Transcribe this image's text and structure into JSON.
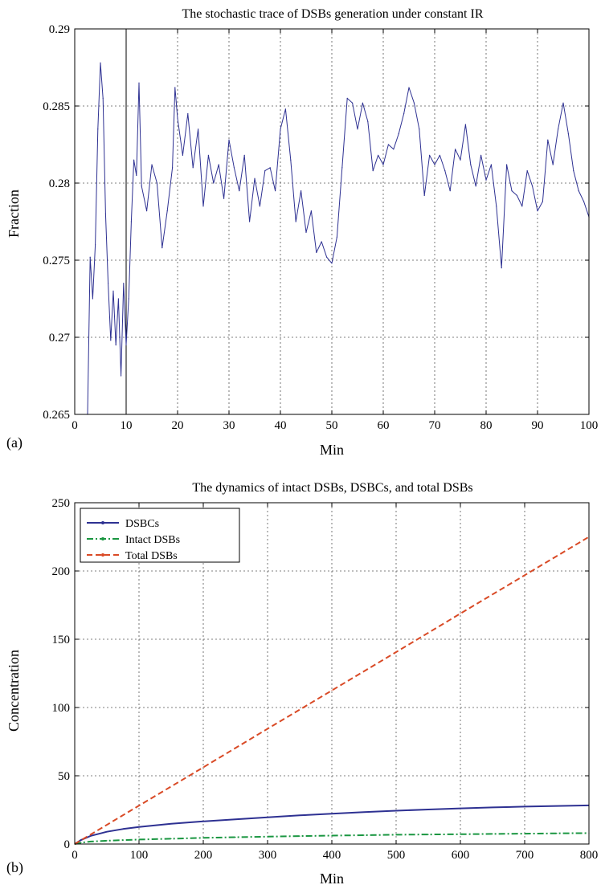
{
  "chart_data": [
    {
      "panel_label": "(a)",
      "type": "line",
      "title": "The stochastic trace of DSBs generation under constant IR",
      "xlabel": "Min",
      "ylabel": "Fraction",
      "xlim": [
        0,
        100
      ],
      "ylim": [
        0.265,
        0.29
      ],
      "xticks": [
        0,
        10,
        20,
        30,
        40,
        50,
        60,
        70,
        80,
        90,
        100
      ],
      "yticks": [
        0.265,
        0.27,
        0.275,
        0.28,
        0.285,
        0.29
      ],
      "ytick_labels": [
        "0.265",
        "0.27",
        "0.275",
        "0.28",
        "0.285",
        "0.29"
      ],
      "grid": true,
      "marker_line_x": 10,
      "series": [
        {
          "color": "#2e3192",
          "x": [
            2.5,
            3,
            3.5,
            4,
            4.5,
            5,
            5.5,
            6,
            6.5,
            7,
            7.5,
            8,
            8.5,
            9,
            9.5,
            10,
            10.5,
            11,
            11.5,
            12,
            12.5,
            13,
            14,
            15,
            16,
            17,
            18,
            19,
            19.5,
            20,
            21,
            22,
            23,
            24,
            25,
            26,
            27,
            28,
            29,
            30,
            31,
            32,
            33,
            34,
            35,
            36,
            37,
            38,
            39,
            40,
            41,
            42,
            43,
            44,
            45,
            46,
            47,
            48,
            49,
            50,
            51,
            52,
            53,
            54,
            55,
            56,
            57,
            58,
            59,
            60,
            61,
            62,
            63,
            64,
            65,
            66,
            67,
            68,
            69,
            70,
            71,
            72,
            73,
            74,
            75,
            76,
            77,
            78,
            79,
            80,
            81,
            82,
            83,
            84,
            85,
            86,
            87,
            88,
            89,
            90,
            91,
            92,
            93,
            94,
            95,
            96,
            97,
            98,
            99,
            100
          ],
          "y": [
            0.265,
            0.2752,
            0.2725,
            0.276,
            0.2835,
            0.2878,
            0.2855,
            0.278,
            0.2735,
            0.2698,
            0.273,
            0.2695,
            0.2725,
            0.2675,
            0.2735,
            0.2695,
            0.2725,
            0.2775,
            0.2815,
            0.2805,
            0.2865,
            0.2798,
            0.2782,
            0.2812,
            0.28,
            0.2758,
            0.2782,
            0.281,
            0.2862,
            0.2842,
            0.2818,
            0.2845,
            0.281,
            0.2835,
            0.2785,
            0.2818,
            0.28,
            0.2812,
            0.279,
            0.2828,
            0.281,
            0.2795,
            0.2818,
            0.2775,
            0.2803,
            0.2785,
            0.2808,
            0.281,
            0.2795,
            0.2835,
            0.2848,
            0.2815,
            0.2775,
            0.2795,
            0.2768,
            0.2782,
            0.2755,
            0.2762,
            0.2752,
            0.2748,
            0.2765,
            0.281,
            0.2855,
            0.2852,
            0.2835,
            0.2852,
            0.284,
            0.2808,
            0.2818,
            0.2812,
            0.2825,
            0.2822,
            0.2832,
            0.2845,
            0.2862,
            0.2852,
            0.2835,
            0.2792,
            0.2818,
            0.2812,
            0.2818,
            0.2808,
            0.2795,
            0.2822,
            0.2815,
            0.2838,
            0.2812,
            0.2798,
            0.2818,
            0.2802,
            0.2812,
            0.2785,
            0.2745,
            0.2812,
            0.2795,
            0.2792,
            0.2785,
            0.2808,
            0.2798,
            0.2782,
            0.2788,
            0.2828,
            0.2812,
            0.2835,
            0.2852,
            0.2832,
            0.2808,
            0.2795,
            0.2788,
            0.2778
          ]
        }
      ]
    },
    {
      "panel_label": "(b)",
      "type": "line",
      "title": "The dynamics of intact DSBs, DSBCs, and total DSBs",
      "xlabel": "Min",
      "ylabel": "Concentration",
      "xlim": [
        0,
        800
      ],
      "ylim": [
        0,
        250
      ],
      "xticks": [
        0,
        100,
        200,
        300,
        400,
        500,
        600,
        700,
        800
      ],
      "yticks": [
        0,
        50,
        100,
        150,
        200,
        250
      ],
      "grid": true,
      "legend_position": "top-left",
      "series": [
        {
          "name": "DSBCs",
          "color": "#2e3192",
          "style": "solid",
          "x": [
            0,
            10,
            25,
            50,
            75,
            100,
            150,
            200,
            250,
            300,
            350,
            400,
            450,
            500,
            550,
            600,
            650,
            700,
            750,
            800
          ],
          "y": [
            0,
            3,
            6,
            9,
            11,
            12.5,
            14.8,
            16.6,
            18.1,
            19.6,
            21,
            22.2,
            23.4,
            24.4,
            25.3,
            26.1,
            26.8,
            27.4,
            27.9,
            28.3
          ]
        },
        {
          "name": "Intact DSBs",
          "color": "#1a9641",
          "style": "dashdot",
          "x": [
            0,
            10,
            25,
            50,
            75,
            100,
            150,
            200,
            250,
            300,
            350,
            400,
            450,
            500,
            550,
            600,
            650,
            700,
            750,
            800
          ],
          "y": [
            0,
            1,
            1.8,
            2.4,
            2.9,
            3.3,
            3.9,
            4.5,
            5,
            5.4,
            5.8,
            6.2,
            6.5,
            6.8,
            7,
            7.2,
            7.4,
            7.6,
            7.8,
            8
          ]
        },
        {
          "name": "Total DSBs",
          "color": "#d94a26",
          "style": "dashed",
          "x": [
            0,
            100,
            200,
            300,
            400,
            500,
            600,
            700,
            800
          ],
          "y": [
            0,
            28.1,
            56.2,
            84.4,
            112.5,
            140.6,
            168.8,
            196.9,
            225
          ]
        }
      ]
    }
  ]
}
